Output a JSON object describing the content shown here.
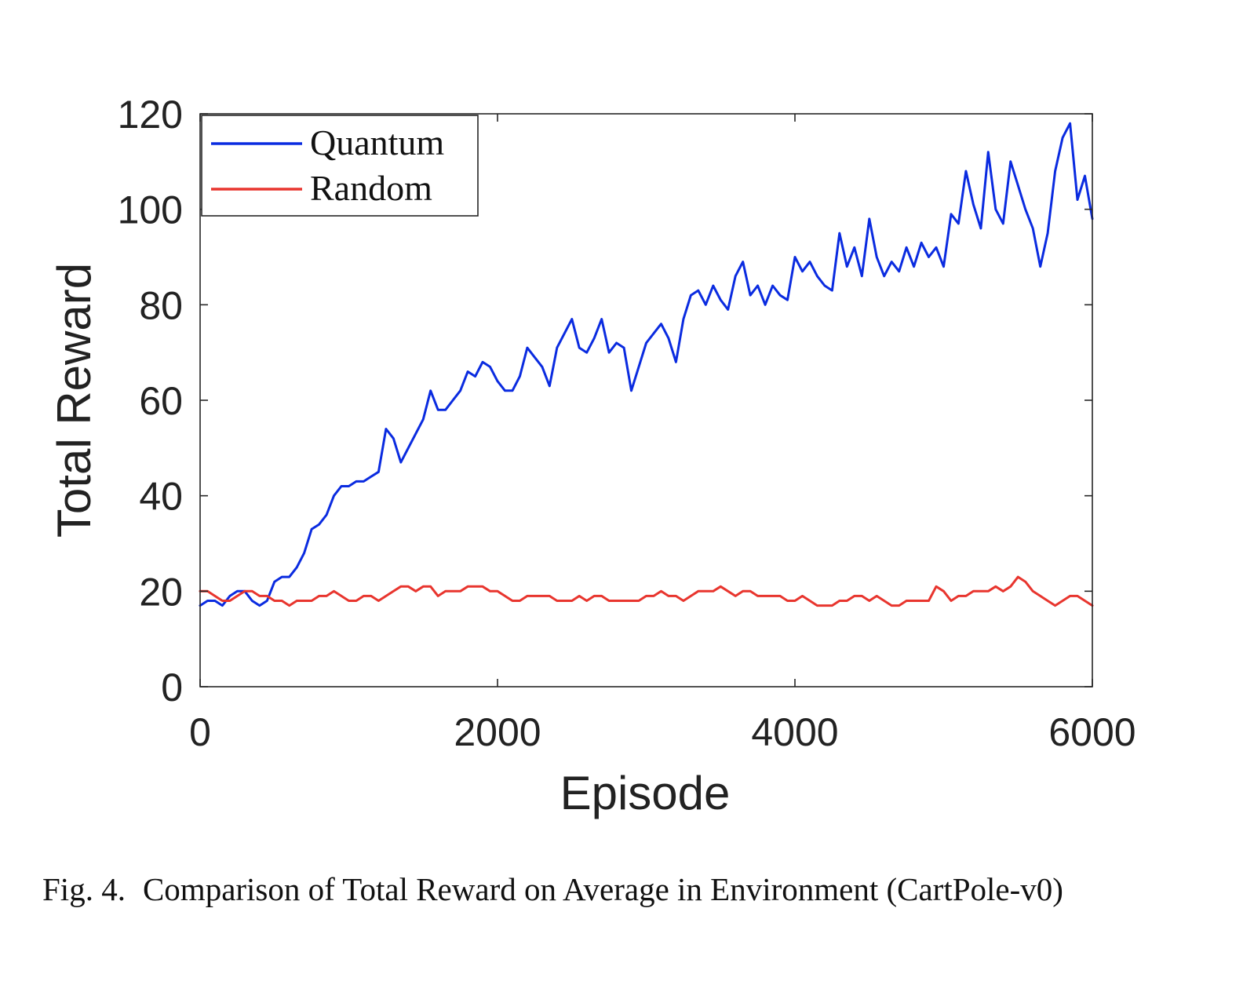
{
  "chart_data": {
    "type": "line",
    "xlabel": "Episode",
    "ylabel": "Total Reward",
    "xlim": [
      0,
      6000
    ],
    "ylim": [
      0,
      120
    ],
    "xticks": [
      0,
      2000,
      4000,
      6000
    ],
    "yticks": [
      0,
      20,
      40,
      60,
      80,
      100,
      120
    ],
    "xtick_labels": [
      "0",
      "2000",
      "4000",
      "6000"
    ],
    "ytick_labels": [
      "0",
      "20",
      "40",
      "60",
      "80",
      "100",
      "120"
    ],
    "grid": false,
    "legend_position": "top-left",
    "series": [
      {
        "name": "Quantum",
        "color": "#0a2be0",
        "x": [
          0,
          50,
          100,
          150,
          200,
          250,
          300,
          350,
          400,
          450,
          500,
          550,
          600,
          650,
          700,
          750,
          800,
          850,
          900,
          950,
          1000,
          1050,
          1100,
          1150,
          1200,
          1250,
          1300,
          1350,
          1400,
          1450,
          1500,
          1550,
          1600,
          1650,
          1700,
          1750,
          1800,
          1850,
          1900,
          1950,
          2000,
          2050,
          2100,
          2150,
          2200,
          2250,
          2300,
          2350,
          2400,
          2450,
          2500,
          2550,
          2600,
          2650,
          2700,
          2750,
          2800,
          2850,
          2900,
          2950,
          3000,
          3050,
          3100,
          3150,
          3200,
          3250,
          3300,
          3350,
          3400,
          3450,
          3500,
          3550,
          3600,
          3650,
          3700,
          3750,
          3800,
          3850,
          3900,
          3950,
          4000,
          4050,
          4100,
          4150,
          4200,
          4250,
          4300,
          4350,
          4400,
          4450,
          4500,
          4550,
          4600,
          4650,
          4700,
          4750,
          4800,
          4850,
          4900,
          4950,
          5000,
          5050,
          5100,
          5150,
          5200,
          5250,
          5300,
          5350,
          5400,
          5450,
          5500,
          5550,
          5600,
          5650,
          5700,
          5750,
          5800,
          5850,
          5900,
          5950,
          6000
        ],
        "values": [
          17,
          18,
          18,
          17,
          19,
          20,
          20,
          18,
          17,
          18,
          22,
          23,
          23,
          25,
          28,
          33,
          34,
          36,
          40,
          42,
          42,
          43,
          43,
          44,
          45,
          54,
          52,
          47,
          50,
          53,
          56,
          62,
          58,
          58,
          60,
          62,
          66,
          65,
          68,
          67,
          64,
          62,
          62,
          65,
          71,
          69,
          67,
          63,
          71,
          74,
          77,
          71,
          70,
          73,
          77,
          70,
          72,
          71,
          62,
          67,
          72,
          74,
          76,
          73,
          68,
          77,
          82,
          83,
          80,
          84,
          81,
          79,
          86,
          89,
          82,
          84,
          80,
          84,
          82,
          81,
          90,
          87,
          89,
          86,
          84,
          83,
          95,
          88,
          92,
          86,
          98,
          90,
          86,
          89,
          87,
          92,
          88,
          93,
          90,
          92,
          88,
          99,
          97,
          108,
          101,
          96,
          112,
          100,
          97,
          110,
          105,
          100,
          96,
          88,
          95,
          108,
          115,
          118,
          102,
          107,
          98
        ]
      },
      {
        "name": "Random",
        "color": "#e8352e",
        "x": [
          0,
          50,
          100,
          150,
          200,
          250,
          300,
          350,
          400,
          450,
          500,
          550,
          600,
          650,
          700,
          750,
          800,
          850,
          900,
          950,
          1000,
          1050,
          1100,
          1150,
          1200,
          1250,
          1300,
          1350,
          1400,
          1450,
          1500,
          1550,
          1600,
          1650,
          1700,
          1750,
          1800,
          1850,
          1900,
          1950,
          2000,
          2050,
          2100,
          2150,
          2200,
          2250,
          2300,
          2350,
          2400,
          2450,
          2500,
          2550,
          2600,
          2650,
          2700,
          2750,
          2800,
          2850,
          2900,
          2950,
          3000,
          3050,
          3100,
          3150,
          3200,
          3250,
          3300,
          3350,
          3400,
          3450,
          3500,
          3550,
          3600,
          3650,
          3700,
          3750,
          3800,
          3850,
          3900,
          3950,
          4000,
          4050,
          4100,
          4150,
          4200,
          4250,
          4300,
          4350,
          4400,
          4450,
          4500,
          4550,
          4600,
          4650,
          4700,
          4750,
          4800,
          4850,
          4900,
          4950,
          5000,
          5050,
          5100,
          5150,
          5200,
          5250,
          5300,
          5350,
          5400,
          5450,
          5500,
          5550,
          5600,
          5650,
          5700,
          5750,
          5800,
          5850,
          5900,
          5950,
          6000
        ],
        "values": [
          20,
          20,
          19,
          18,
          18,
          19,
          20,
          20,
          19,
          19,
          18,
          18,
          17,
          18,
          18,
          18,
          19,
          19,
          20,
          19,
          18,
          18,
          19,
          19,
          18,
          19,
          20,
          21,
          21,
          20,
          21,
          21,
          19,
          20,
          20,
          20,
          21,
          21,
          21,
          20,
          20,
          19,
          18,
          18,
          19,
          19,
          19,
          19,
          18,
          18,
          18,
          19,
          18,
          19,
          19,
          18,
          18,
          18,
          18,
          18,
          19,
          19,
          20,
          19,
          19,
          18,
          19,
          20,
          20,
          20,
          21,
          20,
          19,
          20,
          20,
          19,
          19,
          19,
          19,
          18,
          18,
          19,
          18,
          17,
          17,
          17,
          18,
          18,
          19,
          19,
          18,
          19,
          18,
          17,
          17,
          18,
          18,
          18,
          18,
          21,
          20,
          18,
          19,
          19,
          20,
          20,
          20,
          21,
          20,
          21,
          23,
          22,
          20,
          19,
          18,
          17,
          18,
          19,
          19,
          18,
          17
        ]
      }
    ]
  },
  "caption": {
    "label": "Fig. 4.",
    "text": "Comparison of Total Reward on Average in Environment (CartPole-v0)"
  }
}
